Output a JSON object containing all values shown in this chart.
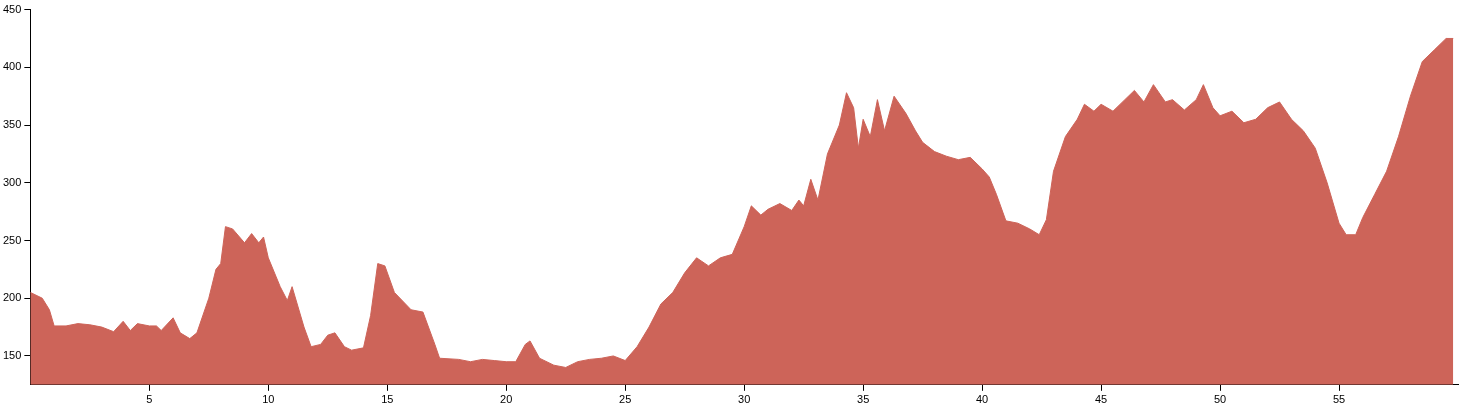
{
  "chart_data": {
    "type": "area",
    "xlim": [
      0,
      60
    ],
    "ylim": [
      125,
      450
    ],
    "xticks": [
      5,
      10,
      15,
      20,
      25,
      30,
      35,
      40,
      45,
      50,
      55
    ],
    "yticks": [
      150,
      200,
      250,
      300,
      350,
      400,
      450
    ],
    "grid": false,
    "legend": false,
    "marker": "none",
    "series": [
      {
        "color": "#cd6459",
        "x": [
          0,
          0.5,
          0.8,
          1,
          1.5,
          2,
          2.5,
          3,
          3.5,
          3.9,
          4.2,
          4.5,
          5,
          5.3,
          5.5,
          6,
          6.3,
          6.7,
          7,
          7.5,
          7.8,
          8,
          8.2,
          8.5,
          9,
          9.3,
          9.6,
          9.8,
          10,
          10.5,
          10.8,
          11,
          11.5,
          11.8,
          12.2,
          12.5,
          12.8,
          13.2,
          13.5,
          14,
          14.3,
          14.6,
          14.9,
          15.3,
          16,
          16.5,
          17,
          17.2,
          18,
          18.5,
          19,
          19.5,
          20,
          20.4,
          20.8,
          21,
          21.4,
          22,
          22.5,
          23,
          23.5,
          24,
          24.5,
          25,
          25.5,
          26,
          26.5,
          27,
          27.5,
          28,
          28.5,
          29,
          29.5,
          30,
          30.3,
          30.7,
          31,
          31.5,
          32,
          32.3,
          32.5,
          32.8,
          33.1,
          33.5,
          34,
          34.3,
          34.6,
          34.8,
          35,
          35.3,
          35.6,
          35.9,
          36.3,
          36.8,
          37.2,
          37.5,
          38,
          38.5,
          39,
          39.5,
          40,
          40.3,
          40.6,
          41,
          41.5,
          42,
          42.4,
          42.7,
          43,
          43.5,
          44,
          44.3,
          44.7,
          45,
          45.5,
          46,
          46.4,
          46.8,
          47.2,
          47.7,
          48,
          48.5,
          49,
          49.3,
          49.7,
          50,
          50.5,
          51,
          51.5,
          52,
          52.5,
          53,
          53.5,
          54,
          54.5,
          55,
          55.3,
          55.7,
          56,
          56.5,
          57,
          57.5,
          58,
          58.5,
          59,
          59.5,
          59.8
        ],
        "values": [
          205,
          200,
          190,
          176,
          176,
          178,
          177,
          175,
          171,
          180,
          172,
          178,
          176,
          176,
          172,
          183,
          170,
          165,
          170,
          200,
          225,
          230,
          262,
          260,
          248,
          256,
          248,
          253,
          235,
          210,
          198,
          210,
          175,
          158,
          160,
          168,
          170,
          158,
          155,
          157,
          185,
          230,
          228,
          205,
          190,
          188,
          160,
          148,
          147,
          145,
          147,
          146,
          145,
          145,
          160,
          163,
          148,
          142,
          140,
          145,
          147,
          148,
          150,
          146,
          158,
          175,
          195,
          205,
          222,
          235,
          228,
          235,
          238,
          262,
          280,
          272,
          277,
          282,
          276,
          285,
          280,
          303,
          285,
          325,
          350,
          378,
          365,
          330,
          355,
          340,
          372,
          345,
          375,
          360,
          345,
          335,
          327,
          323,
          320,
          322,
          312,
          305,
          290,
          267,
          265,
          260,
          255,
          268,
          310,
          340,
          355,
          368,
          362,
          368,
          362,
          372,
          380,
          370,
          385,
          370,
          372,
          363,
          372,
          385,
          365,
          358,
          362,
          352,
          355,
          365,
          370,
          355,
          345,
          330,
          300,
          265,
          255,
          255,
          270,
          290,
          310,
          340,
          375,
          405,
          415,
          425,
          425
        ]
      }
    ]
  }
}
